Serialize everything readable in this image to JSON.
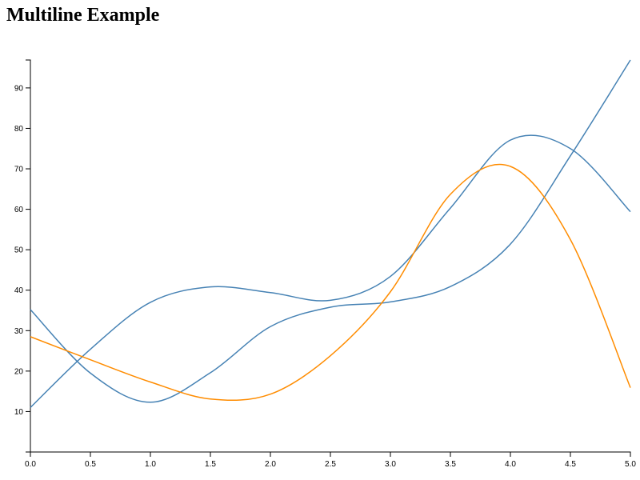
{
  "chart_data": {
    "type": "line",
    "title": "Multiline Example",
    "x": [
      0,
      0.5,
      1,
      1.5,
      2,
      2.5,
      3,
      3.5,
      4,
      4.5,
      5
    ],
    "series": [
      {
        "color": "#4682b4",
        "values": [
          11.0,
          25.4,
          37.0,
          40.8,
          39.4,
          37.5,
          43.4,
          60.3,
          77.1,
          75.0,
          59.4
        ]
      },
      {
        "color": "#4682b4",
        "values": [
          35.2,
          19.5,
          12.3,
          19.6,
          31.0,
          35.8,
          37.1,
          40.9,
          51.4,
          73.2,
          96.9
        ]
      },
      {
        "color": "#ff8c00",
        "values": [
          28.5,
          22.8,
          17.3,
          13.1,
          14.3,
          23.8,
          39.6,
          63.7,
          70.6,
          52.5,
          15.9
        ]
      }
    ],
    "xlim": [
      0,
      5
    ],
    "xticks": [
      {
        "value": 0,
        "label": "0.0"
      },
      0.5,
      {
        "value": 1,
        "label": "1.0"
      },
      1.5,
      {
        "value": 2,
        "label": "2.0"
      },
      2.5,
      {
        "value": 3,
        "label": "3.0"
      },
      3.5,
      {
        "value": 4,
        "label": "4.0"
      },
      4.5,
      {
        "value": 5,
        "label": "5.0"
      }
    ],
    "ylim": [
      0,
      96.9
    ],
    "yticks": [
      10,
      20,
      30,
      40,
      50,
      60,
      70,
      80,
      90
    ]
  }
}
